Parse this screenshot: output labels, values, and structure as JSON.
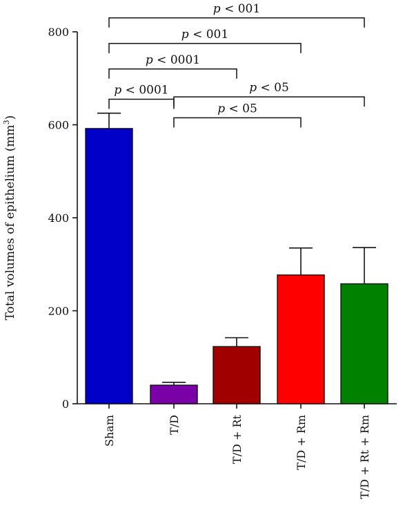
{
  "chart_data": {
    "type": "bar",
    "title": "",
    "xlabel": "",
    "ylabel": "Total volumes of epithelium (mm³)",
    "ylabel_main": "Total volumes of epithelium (mm",
    "ylabel_sup": "3",
    "ylabel_close": ")",
    "ylim": [
      0,
      800
    ],
    "yticks": [
      0,
      200,
      400,
      600,
      800
    ],
    "grid": false,
    "categories": [
      "Sham",
      "T/D",
      "T/D + Rt",
      "T/D + Rm",
      "T/D + Rt + Rm"
    ],
    "values": [
      592,
      40,
      123,
      277,
      258
    ],
    "errors": [
      33,
      6,
      19,
      58,
      78
    ],
    "colors": [
      "#0000c8",
      "#7a00a8",
      "#a00000",
      "#ff0000",
      "#008200"
    ],
    "significance": [
      {
        "from": 0,
        "to": 1,
        "label": "p < 0001",
        "y": 655
      },
      {
        "from": 1,
        "to": 3,
        "label": "p < 05",
        "y": 615
      },
      {
        "from": 1,
        "to": 4,
        "label": "p < 05",
        "y": 660
      },
      {
        "from": 0,
        "to": 2,
        "label": "p < 0001",
        "y": 720
      },
      {
        "from": 0,
        "to": 3,
        "label": "p < 001",
        "y": 775
      },
      {
        "from": 0,
        "to": 4,
        "label": "p < 001",
        "y": 830
      }
    ]
  }
}
